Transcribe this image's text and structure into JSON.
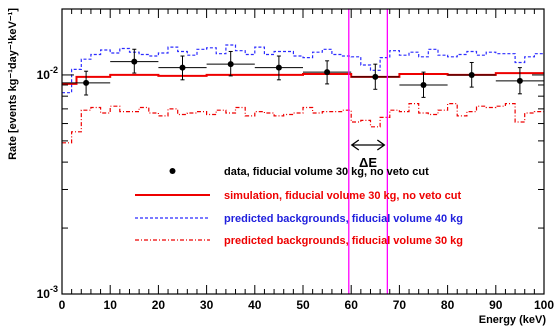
{
  "chart_data": {
    "type": "line",
    "xlabel": "Energy (keV)",
    "ylabel": "Rate [events kg⁻¹day⁻¹keV⁻¹]",
    "xlim": [
      0,
      100
    ],
    "ylim": [
      0.001,
      0.02
    ],
    "yscale": "log",
    "grid": false,
    "legend_position": "bottom-right",
    "x_ticks": [
      "0",
      "10",
      "20",
      "30",
      "40",
      "50",
      "60",
      "70",
      "80",
      "90",
      "100"
    ],
    "y_ticks": [
      {
        "value": 0.001,
        "base": "10",
        "exp": "-3"
      },
      {
        "value": 0.01,
        "base": "10",
        "exp": "-2"
      }
    ],
    "annotation": {
      "label": "ΔE",
      "x_range": [
        59.5,
        67.5
      ]
    },
    "markers": [
      {
        "name": "window-low-edge",
        "x": 59.5,
        "color": "#ff00ff"
      },
      {
        "name": "window-high-edge",
        "x": 67.5,
        "color": "#ff00ff"
      }
    ],
    "series": [
      {
        "name": "data, fiducial volume 30 kg, no veto cut",
        "style": "points",
        "color": "#000000",
        "x": [
          5,
          15,
          25,
          35,
          45,
          55,
          65,
          75,
          85,
          95
        ],
        "y": [
          0.0092,
          0.0115,
          0.0108,
          0.0112,
          0.0108,
          0.0103,
          0.0098,
          0.009,
          0.01,
          0.0094
        ],
        "x_err": 5,
        "y_low": [
          0.0081,
          0.0102,
          0.0095,
          0.0099,
          0.0095,
          0.0091,
          0.0086,
          0.0079,
          0.0088,
          0.0082
        ],
        "y_high": [
          0.0104,
          0.0131,
          0.0122,
          0.0128,
          0.0122,
          0.0116,
          0.0112,
          0.0103,
          0.0114,
          0.0108
        ]
      },
      {
        "name": "simulation, fiducial volume 30 kg, no veto cut",
        "style": "step",
        "color": "#ee0000",
        "dash": "",
        "edges": [
          0,
          3,
          10,
          20,
          30,
          40,
          50,
          60,
          70,
          80,
          90,
          100
        ],
        "y": [
          0.0091,
          0.0098,
          0.01,
          0.0099,
          0.01,
          0.01,
          0.0101,
          0.0098,
          0.0101,
          0.01,
          0.0102
        ]
      },
      {
        "name": "predicted backgrounds, fiducial volume 40 kg",
        "style": "step",
        "color": "#2b2bff",
        "dash": "3,2",
        "edges": [
          0,
          2,
          4,
          6,
          8,
          10,
          12,
          14,
          16,
          18,
          20,
          22,
          24,
          26,
          28,
          30,
          32,
          34,
          36,
          38,
          40,
          42,
          44,
          46,
          48,
          50,
          52,
          54,
          56,
          58,
          60,
          62,
          64,
          66,
          68,
          70,
          72,
          74,
          76,
          78,
          80,
          82,
          84,
          86,
          88,
          90,
          92,
          94,
          96,
          98,
          100
        ],
        "y": [
          0.0083,
          0.0106,
          0.0118,
          0.0124,
          0.013,
          0.0126,
          0.0132,
          0.0127,
          0.0124,
          0.0122,
          0.0126,
          0.0134,
          0.0128,
          0.0123,
          0.0131,
          0.0133,
          0.0125,
          0.0137,
          0.0129,
          0.0124,
          0.0134,
          0.0124,
          0.0128,
          0.0128,
          0.0122,
          0.012,
          0.0127,
          0.0131,
          0.0124,
          0.0122,
          0.0121,
          0.0111,
          0.0105,
          0.012,
          0.0129,
          0.0123,
          0.0127,
          0.0121,
          0.0131,
          0.0123,
          0.0121,
          0.0124,
          0.0128,
          0.0123,
          0.0127,
          0.0125,
          0.0125,
          0.0114,
          0.0121,
          0.0125
        ]
      },
      {
        "name": "predicted backgrounds, fiducial volume 30 kg",
        "style": "step",
        "color": "#ee0000",
        "dash": "4,2,1,2",
        "edges": [
          0,
          2,
          4,
          6,
          8,
          10,
          12,
          14,
          16,
          18,
          20,
          22,
          24,
          26,
          28,
          30,
          32,
          34,
          36,
          38,
          40,
          42,
          44,
          46,
          48,
          50,
          52,
          54,
          56,
          58,
          60,
          62,
          64,
          66,
          68,
          70,
          72,
          74,
          76,
          78,
          80,
          82,
          84,
          86,
          88,
          90,
          92,
          94,
          96,
          98,
          100
        ],
        "y": [
          0.0049,
          0.0055,
          0.0069,
          0.0071,
          0.0067,
          0.0072,
          0.0068,
          0.0068,
          0.0071,
          0.0067,
          0.0065,
          0.007,
          0.0066,
          0.0067,
          0.0068,
          0.0066,
          0.0069,
          0.0067,
          0.0071,
          0.0065,
          0.0068,
          0.0067,
          0.0065,
          0.0066,
          0.0067,
          0.0071,
          0.0067,
          0.0068,
          0.0068,
          0.0069,
          0.0061,
          0.0062,
          0.0058,
          0.0064,
          0.0069,
          0.0068,
          0.0074,
          0.0067,
          0.0066,
          0.0069,
          0.0074,
          0.0065,
          0.0068,
          0.0072,
          0.0071,
          0.0072,
          0.0074,
          0.0061,
          0.0067,
          0.0068
        ]
      }
    ]
  }
}
